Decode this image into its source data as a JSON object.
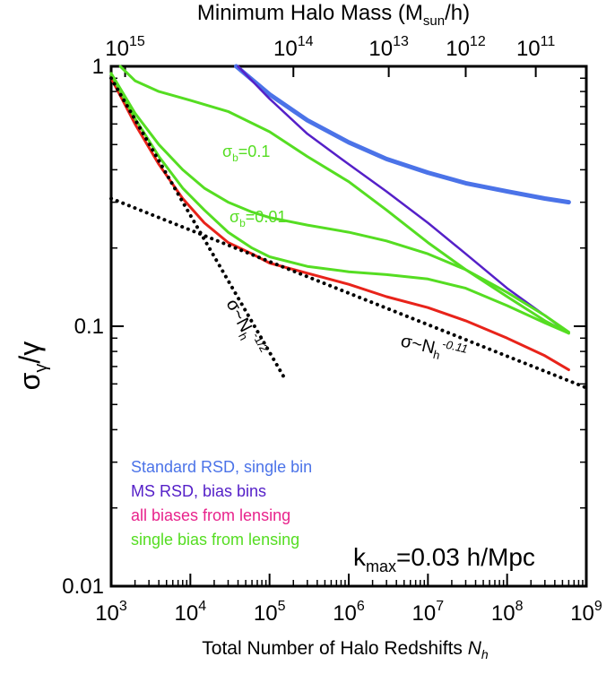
{
  "chart_data": {
    "type": "line",
    "title_top_axis": "Minimum Halo Mass (M",
    "title_top_axis_sub": "sun",
    "title_top_axis_tail": "/h)",
    "xlabel": "Total Number of Halo Redshifts ",
    "xlabel_var": "N",
    "xlabel_sub": "h",
    "ylabel_main": "σ",
    "ylabel_sub": "γ",
    "ylabel_tail": "/γ",
    "x_scale": "log",
    "y_scale": "log",
    "xlim": [
      1000,
      1000000000
    ],
    "ylim": [
      0.01,
      1
    ],
    "x_ticks": [
      {
        "value": 1000,
        "base": "10",
        "exp": "3"
      },
      {
        "value": 10000,
        "base": "10",
        "exp": "4"
      },
      {
        "value": 100000,
        "base": "10",
        "exp": "5"
      },
      {
        "value": 1000000,
        "base": "10",
        "exp": "6"
      },
      {
        "value": 10000000,
        "base": "10",
        "exp": "7"
      },
      {
        "value": 100000000,
        "base": "10",
        "exp": "8"
      },
      {
        "value": 1000000000,
        "base": "10",
        "exp": "9"
      }
    ],
    "y_ticks": [
      {
        "value": 1,
        "label": "1"
      },
      {
        "value": 0.1,
        "label": "0.1"
      },
      {
        "value": 0.01,
        "label": "0.01"
      }
    ],
    "top_ticks": [
      {
        "value": 1500,
        "base": "10",
        "exp": "15"
      },
      {
        "value": 200000,
        "base": "10",
        "exp": "14"
      },
      {
        "value": 3200000,
        "base": "10",
        "exp": "13"
      },
      {
        "value": 30000000,
        "base": "10",
        "exp": "12"
      },
      {
        "value": 230000000,
        "base": "10",
        "exp": "11"
      }
    ],
    "series": [
      {
        "name": "Standard RSD, single bin",
        "color": "#4b73e8",
        "style": "solid",
        "width": 5,
        "x": [
          38000,
          100000,
          300000,
          1000000,
          3000000,
          10000000,
          30000000,
          100000000,
          300000000,
          600000000
        ],
        "y": [
          1.0,
          0.78,
          0.62,
          0.51,
          0.44,
          0.39,
          0.355,
          0.33,
          0.31,
          0.3
        ]
      },
      {
        "name": "MS RSD, bias bins",
        "color": "#5520c8",
        "style": "solid",
        "width": 2.5,
        "x": [
          40000,
          100000,
          300000,
          1000000,
          3000000,
          10000000,
          30000000,
          100000000,
          300000000,
          600000000
        ],
        "y": [
          1.0,
          0.75,
          0.55,
          0.42,
          0.33,
          0.25,
          0.19,
          0.14,
          0.11,
          0.094
        ]
      },
      {
        "name": "all biases from lensing",
        "color": "#e8231a",
        "style": "solid",
        "width": 3,
        "x": [
          1000,
          2000,
          4000,
          8000,
          15000,
          30000,
          60000,
          100000,
          300000,
          1000000,
          3000000,
          10000000,
          30000000,
          100000000,
          300000000,
          600000000
        ],
        "y": [
          0.9,
          0.6,
          0.42,
          0.31,
          0.25,
          0.21,
          0.19,
          0.175,
          0.16,
          0.145,
          0.13,
          0.118,
          0.105,
          0.09,
          0.077,
          0.068
        ]
      },
      {
        "name": "single bias from lensing",
        "color": "#55dd22",
        "style": "solid",
        "width": 3,
        "x": [
          1000,
          2000,
          4000,
          8000,
          15000,
          30000,
          60000,
          100000,
          300000,
          1000000,
          3000000,
          10000000,
          30000000,
          100000000,
          300000000,
          600000000
        ],
        "y": [
          0.93,
          0.63,
          0.45,
          0.34,
          0.28,
          0.23,
          0.2,
          0.185,
          0.17,
          0.162,
          0.158,
          0.152,
          0.14,
          0.12,
          0.103,
          0.094
        ]
      },
      {
        "name": "single bias from lensing, σb=0.01",
        "color": "#55dd22",
        "style": "solid",
        "width": 3,
        "x": [
          1000,
          2000,
          4000,
          8000,
          15000,
          30000,
          60000,
          100000,
          300000,
          1000000,
          3000000,
          10000000,
          30000000,
          100000000,
          300000000,
          600000000
        ],
        "y": [
          0.94,
          0.66,
          0.5,
          0.4,
          0.34,
          0.3,
          0.275,
          0.262,
          0.245,
          0.23,
          0.213,
          0.19,
          0.165,
          0.135,
          0.11,
          0.095
        ]
      },
      {
        "name": "single bias from lensing, σb=0.1",
        "color": "#55dd22",
        "style": "solid",
        "width": 3,
        "x": [
          1300,
          2000,
          4000,
          10000,
          30000,
          100000,
          300000,
          1000000,
          3000000,
          10000000,
          30000000,
          100000000,
          300000000,
          600000000
        ],
        "y": [
          1.0,
          0.88,
          0.8,
          0.74,
          0.67,
          0.56,
          0.45,
          0.36,
          0.28,
          0.21,
          0.165,
          0.13,
          0.105,
          0.094
        ]
      },
      {
        "name": "σ~Nh^-1/2",
        "color": "#000000",
        "style": "dotted",
        "width": 4,
        "x": [
          1000,
          160000
        ],
        "y": [
          0.9,
          0.062
        ]
      },
      {
        "name": "σ~Nh^-0.11",
        "color": "#000000",
        "style": "dotted",
        "width": 4,
        "x": [
          1000,
          1000000000
        ],
        "y": [
          0.31,
          0.058
        ]
      }
    ],
    "annotations": {
      "sigma_b_1": {
        "main": "σ",
        "sub": "b",
        "tail": "=0.1",
        "color": "#55dd22"
      },
      "sigma_b_2": {
        "main": "σ",
        "sub": "b",
        "tail": "=0.01",
        "color": "#55dd22"
      },
      "slope_half": {
        "main": "σ~N",
        "sub": "h",
        "sup": "-1/2",
        "color": "#000000"
      },
      "slope_011": {
        "main": "σ~N",
        "sub": "h",
        "sup": "-0.11",
        "color": "#000000"
      },
      "kmax": {
        "main": "k",
        "sub": "max",
        "tail": "=0.03 h/Mpc",
        "color": "#000000"
      }
    },
    "legend": [
      {
        "label": "Standard RSD, single bin",
        "color": "#4b73e8"
      },
      {
        "label": "MS RSD, bias bins",
        "color": "#5520c8"
      },
      {
        "label": "all biases from lensing",
        "color": "#e8238c"
      },
      {
        "label": "single bias from lensing",
        "color": "#55dd22"
      }
    ],
    "legend_position": "bottom-left",
    "grid": false
  }
}
